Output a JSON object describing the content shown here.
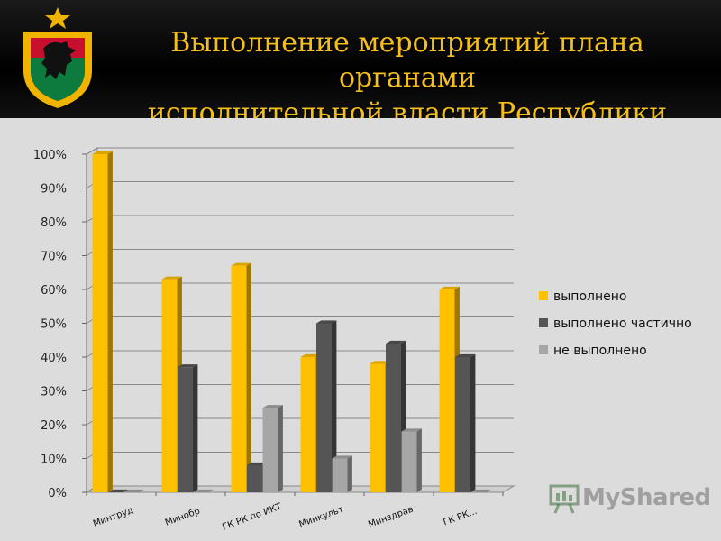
{
  "header": {
    "title_line1": "Выполнение мероприятий плана органами",
    "title_line2": "исполнительной власти Республики Карелия"
  },
  "watermark": {
    "text": "MyShared"
  },
  "chart_data": {
    "type": "bar",
    "categories": [
      "Минтруд",
      "Минобр",
      "ГК РК по ИКТ",
      "Минкульт",
      "Минздрав",
      "ГК РК..."
    ],
    "series": [
      {
        "name": "выполнено",
        "color": "#ffc000",
        "values": [
          100,
          63,
          67,
          40,
          38,
          60
        ]
      },
      {
        "name": "выполнено частично",
        "color": "#555555",
        "values": [
          0,
          37,
          8,
          50,
          44,
          40
        ]
      },
      {
        "name": "не выполнено",
        "color": "#a6a6a6",
        "values": [
          0,
          0,
          25,
          10,
          18,
          0
        ]
      }
    ],
    "yticks": [
      "0%",
      "10%",
      "20%",
      "30%",
      "40%",
      "50%",
      "60%",
      "70%",
      "80%",
      "90%",
      "100%"
    ],
    "ylim": [
      0,
      100
    ],
    "grid": true,
    "legend": "right",
    "style": "3d-clustered-column"
  }
}
